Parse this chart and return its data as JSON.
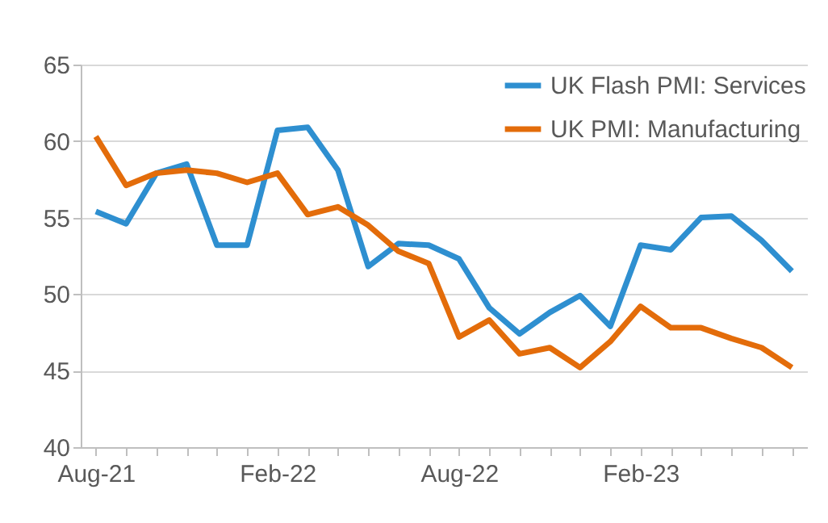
{
  "chart_data": {
    "type": "line",
    "categories": [
      "Aug-21",
      null,
      null,
      null,
      null,
      null,
      "Feb-22",
      null,
      null,
      null,
      null,
      null,
      "Aug-22",
      null,
      null,
      null,
      null,
      null,
      "Feb-23",
      null,
      null,
      null,
      null,
      null
    ],
    "series": [
      {
        "name": "UK Flash PMI: Services",
        "color": "#2e8fd0",
        "values": [
          55.4,
          54.6,
          57.9,
          58.5,
          53.2,
          53.2,
          60.7,
          60.9,
          58.1,
          51.8,
          53.3,
          53.2,
          52.3,
          49.1,
          47.4,
          48.8,
          49.9,
          47.9,
          53.2,
          52.9,
          55.0,
          55.1,
          53.5,
          51.5
        ]
      },
      {
        "name": "UK PMI: Manufacturing",
        "color": "#e36c0a",
        "values": [
          60.3,
          57.1,
          57.9,
          58.1,
          57.9,
          57.3,
          57.9,
          55.2,
          55.7,
          54.5,
          52.8,
          52.0,
          47.2,
          48.3,
          46.1,
          46.5,
          45.2,
          46.9,
          49.2,
          47.8,
          47.8,
          47.1,
          46.5,
          45.2
        ]
      }
    ],
    "ylim": [
      40,
      65
    ],
    "yticks": [
      40,
      45,
      50,
      55,
      60,
      65
    ],
    "grid": "y",
    "legend": "top right"
  }
}
